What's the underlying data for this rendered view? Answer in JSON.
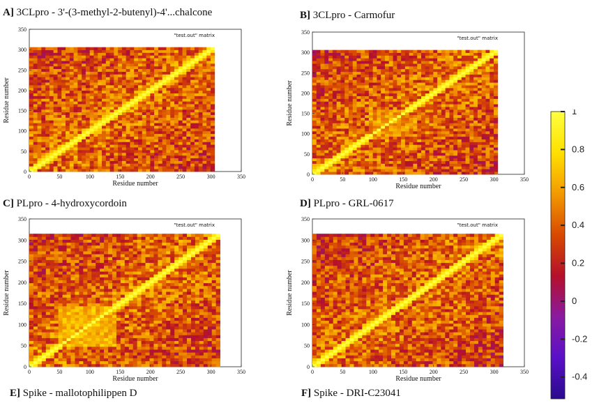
{
  "chart_data": [
    {
      "type": "heatmap",
      "panel_letter": "A]",
      "title": "3CLpro - 3'-(3-methyl-2-butenyl)-4'...chalcone",
      "key_label": "\"test.out\" matrix",
      "xlabel": "Residue number",
      "ylabel": "Residue number",
      "xlim": [
        0,
        350
      ],
      "ylim": [
        0,
        350
      ],
      "xticks": [
        0,
        50,
        100,
        150,
        200,
        250,
        300,
        350
      ],
      "yticks": [
        0,
        50,
        100,
        150,
        200,
        250,
        300,
        350
      ],
      "n_residues": 306
    },
    {
      "type": "heatmap",
      "panel_letter": "B]",
      "title": "3CLpro - Carmofur",
      "key_label": "\"test.out\" matrix",
      "xlabel": "Residue number",
      "ylabel": "Residue number",
      "xlim": [
        0,
        350
      ],
      "ylim": [
        0,
        350
      ],
      "xticks": [
        0,
        50,
        100,
        150,
        200,
        250,
        300,
        350
      ],
      "yticks": [
        0,
        50,
        100,
        150,
        200,
        250,
        300,
        350
      ],
      "n_residues": 306
    },
    {
      "type": "heatmap",
      "panel_letter": "C]",
      "title": "PLpro - 4-hydroxycordoin",
      "key_label": "\"test.out\" matrix",
      "xlabel": "Residue number",
      "ylabel": "Residue number",
      "xlim": [
        0,
        350
      ],
      "ylim": [
        0,
        350
      ],
      "xticks": [
        0,
        50,
        100,
        150,
        200,
        250,
        300,
        350
      ],
      "yticks": [
        0,
        50,
        100,
        150,
        200,
        250,
        300,
        350
      ],
      "n_residues": 315
    },
    {
      "type": "heatmap",
      "panel_letter": "D]",
      "title": "PLpro - GRL-0617",
      "key_label": "\"test.out\" matrix",
      "xlabel": "Residue number",
      "ylabel": "Residue number",
      "xlim": [
        0,
        350
      ],
      "ylim": [
        0,
        350
      ],
      "xticks": [
        0,
        50,
        100,
        150,
        200,
        250,
        300,
        350
      ],
      "yticks": [
        0,
        50,
        100,
        150,
        200,
        250,
        300,
        350
      ],
      "n_residues": 315
    }
  ],
  "bottom_titles": [
    {
      "letter": "E]",
      "text": "Spike - mallotophilippen D"
    },
    {
      "letter": "F]",
      "text": "Spike - DRI-C23041"
    }
  ],
  "colorbar": {
    "min": -0.4,
    "max": 1,
    "ticks": [
      "1",
      "0.8",
      "0.6",
      "0.4",
      "0.2",
      "0",
      "-0.2",
      "-0.4"
    ],
    "tick_values": [
      1,
      0.8,
      0.6,
      0.4,
      0.2,
      0,
      -0.2,
      -0.4
    ],
    "colors": [
      "#2a0a8c",
      "#5a10c8",
      "#8a1aa0",
      "#b5102a",
      "#d84a00",
      "#f39a00",
      "#ffe000",
      "#ffff40"
    ]
  }
}
